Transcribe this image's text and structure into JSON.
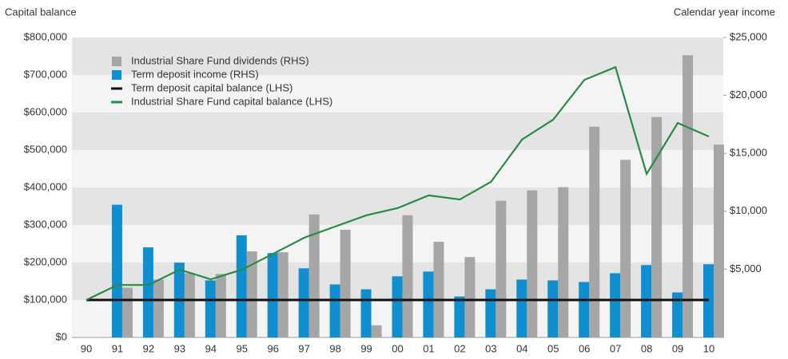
{
  "chart_data": {
    "type": "bar_line",
    "y_axis_label": "Capital balance",
    "y2_axis_label": "Calendar year income",
    "categories": [
      "90",
      "91",
      "92",
      "93",
      "94",
      "95",
      "96",
      "97",
      "98",
      "99",
      "00",
      "01",
      "02",
      "03",
      "04",
      "05",
      "06",
      "07",
      "08",
      "09",
      "10"
    ],
    "series": [
      {
        "name": "Industrial Share Fund dividends (RHS)",
        "color": "#a6a6a6",
        "kind": "bar",
        "axis": "y2",
        "values": [
          null,
          3400,
          4100,
          4650,
          4580,
          6530,
          6460,
          9720,
          8400,
          150,
          9650,
          7360,
          6040,
          10900,
          11800,
          12080,
          17300,
          14440,
          18130,
          23470,
          15760
        ]
      },
      {
        "name": "Term deposit income (RHS)",
        "color": "#0f8fd0",
        "kind": "bar",
        "axis": "y2",
        "values": [
          null,
          10560,
          6880,
          5560,
          4030,
          7920,
          6390,
          5070,
          3680,
          3260,
          4380,
          4790,
          2640,
          3260,
          4100,
          4030,
          3890,
          4650,
          5350,
          2990,
          5420
        ]
      },
      {
        "name": "Term deposit capital balance (LHS)",
        "color": "#111111",
        "kind": "line",
        "axis": "y",
        "values": [
          100000,
          100000,
          100000,
          100000,
          100000,
          100000,
          100000,
          100000,
          100000,
          100000,
          100000,
          100000,
          100000,
          100000,
          100000,
          100000,
          100000,
          100000,
          100000,
          100000,
          100000
        ]
      },
      {
        "name": "Industrial Share Fund capital balance (LHS)",
        "color": "#2a8a44",
        "kind": "line",
        "axis": "y",
        "values": [
          100000,
          140000,
          140000,
          181000,
          155000,
          181000,
          223000,
          266000,
          296000,
          326000,
          345000,
          379000,
          368000,
          415000,
          528000,
          581000,
          687000,
          721000,
          436000,
          572000,
          536000
        ]
      }
    ],
    "ylim": [
      0,
      800000
    ],
    "yticks": [
      {
        "value": 0,
        "label": "$0"
      },
      {
        "value": 100000,
        "label": "$100,000"
      },
      {
        "value": 200000,
        "label": "$200,000"
      },
      {
        "value": 300000,
        "label": "$300,000"
      },
      {
        "value": 400000,
        "label": "$400,000"
      },
      {
        "value": 500000,
        "label": "$500,000"
      },
      {
        "value": 600000,
        "label": "$600,000"
      },
      {
        "value": 700000,
        "label": "$700,000"
      },
      {
        "value": 800000,
        "label": "$800,000"
      }
    ],
    "y2lim": [
      -900,
      25000
    ],
    "y2ticks": [
      {
        "value": 5000,
        "label": "$5,000"
      },
      {
        "value": 10000,
        "label": "$10,000"
      },
      {
        "value": 15000,
        "label": "$15,000"
      },
      {
        "value": 20000,
        "label": "$20,000"
      },
      {
        "value": 25000,
        "label": "$25,000"
      }
    ],
    "grid": "bands",
    "legend": "upper left"
  }
}
